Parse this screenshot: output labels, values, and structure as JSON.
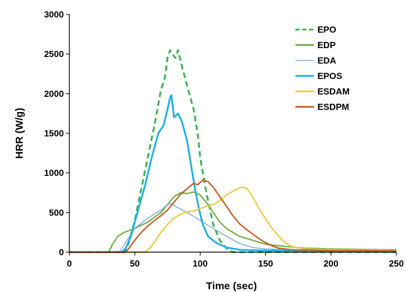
{
  "chart_data": {
    "type": "line",
    "title": "",
    "xlabel": "Time (sec)",
    "ylabel": "HRR (W/g)",
    "xlim": [
      0,
      250
    ],
    "ylim": [
      0,
      3000
    ],
    "xticks": [
      0,
      50,
      100,
      150,
      200,
      250
    ],
    "yticks": [
      0,
      500,
      1000,
      1500,
      2000,
      2500,
      3000
    ],
    "grid": false,
    "legend_position": "top-right",
    "series": [
      {
        "name": "EPO",
        "color": "#2db34a",
        "dash": "dashed",
        "points": [
          [
            0,
            0
          ],
          [
            42,
            0
          ],
          [
            45,
            100
          ],
          [
            50,
            400
          ],
          [
            55,
            800
          ],
          [
            60,
            1200
          ],
          [
            65,
            1600
          ],
          [
            70,
            2050
          ],
          [
            73,
            2200
          ],
          [
            75,
            2450
          ],
          [
            77,
            2550
          ],
          [
            79,
            2500
          ],
          [
            81,
            2450
          ],
          [
            83,
            2550
          ],
          [
            86,
            2350
          ],
          [
            90,
            2100
          ],
          [
            95,
            1800
          ],
          [
            98,
            1500
          ],
          [
            100,
            1200
          ],
          [
            103,
            900
          ],
          [
            106,
            650
          ],
          [
            110,
            350
          ],
          [
            115,
            150
          ],
          [
            120,
            50
          ],
          [
            125,
            0
          ],
          [
            250,
            0
          ]
        ]
      },
      {
        "name": "EDP",
        "color": "#70ad47",
        "dash": "solid",
        "points": [
          [
            0,
            0
          ],
          [
            30,
            0
          ],
          [
            33,
            100
          ],
          [
            37,
            200
          ],
          [
            42,
            250
          ],
          [
            50,
            300
          ],
          [
            60,
            380
          ],
          [
            70,
            500
          ],
          [
            80,
            700
          ],
          [
            85,
            750
          ],
          [
            90,
            740
          ],
          [
            95,
            760
          ],
          [
            100,
            720
          ],
          [
            105,
            620
          ],
          [
            110,
            500
          ],
          [
            115,
            380
          ],
          [
            120,
            300
          ],
          [
            130,
            200
          ],
          [
            140,
            150
          ],
          [
            150,
            100
          ],
          [
            160,
            80
          ],
          [
            180,
            50
          ],
          [
            200,
            40
          ],
          [
            240,
            30
          ],
          [
            250,
            30
          ]
        ]
      },
      {
        "name": "EDA",
        "color": "#8eaed6",
        "dash": "solid",
        "points": [
          [
            0,
            0
          ],
          [
            38,
            0
          ],
          [
            42,
            100
          ],
          [
            50,
            300
          ],
          [
            60,
            430
          ],
          [
            70,
            530
          ],
          [
            75,
            600
          ],
          [
            78,
            610
          ],
          [
            82,
            570
          ],
          [
            90,
            500
          ],
          [
            100,
            400
          ],
          [
            110,
            300
          ],
          [
            120,
            200
          ],
          [
            130,
            110
          ],
          [
            140,
            60
          ],
          [
            150,
            40
          ],
          [
            170,
            30
          ],
          [
            200,
            25
          ],
          [
            250,
            20
          ]
        ]
      },
      {
        "name": "EPOS",
        "color": "#1eaee8",
        "dash": "solid",
        "points": [
          [
            0,
            0
          ],
          [
            40,
            0
          ],
          [
            43,
            50
          ],
          [
            47,
            200
          ],
          [
            52,
            500
          ],
          [
            58,
            850
          ],
          [
            63,
            1200
          ],
          [
            68,
            1500
          ],
          [
            72,
            1600
          ],
          [
            75,
            1800
          ],
          [
            77,
            1950
          ],
          [
            78,
            1980
          ],
          [
            80,
            1700
          ],
          [
            83,
            1750
          ],
          [
            86,
            1650
          ],
          [
            90,
            1400
          ],
          [
            93,
            1100
          ],
          [
            96,
            800
          ],
          [
            99,
            550
          ],
          [
            102,
            350
          ],
          [
            106,
            200
          ],
          [
            112,
            120
          ],
          [
            120,
            60
          ],
          [
            130,
            30
          ],
          [
            150,
            20
          ],
          [
            200,
            15
          ],
          [
            250,
            15
          ]
        ]
      },
      {
        "name": "ESDAM",
        "color": "#f0c93c",
        "dash": "solid",
        "points": [
          [
            0,
            0
          ],
          [
            58,
            0
          ],
          [
            62,
            60
          ],
          [
            66,
            150
          ],
          [
            70,
            250
          ],
          [
            75,
            350
          ],
          [
            80,
            430
          ],
          [
            85,
            480
          ],
          [
            90,
            510
          ],
          [
            95,
            520
          ],
          [
            100,
            550
          ],
          [
            105,
            580
          ],
          [
            110,
            600
          ],
          [
            115,
            650
          ],
          [
            120,
            720
          ],
          [
            125,
            770
          ],
          [
            130,
            810
          ],
          [
            133,
            820
          ],
          [
            136,
            800
          ],
          [
            140,
            700
          ],
          [
            145,
            550
          ],
          [
            150,
            420
          ],
          [
            155,
            300
          ],
          [
            160,
            200
          ],
          [
            165,
            120
          ],
          [
            170,
            70
          ],
          [
            180,
            40
          ],
          [
            200,
            30
          ],
          [
            250,
            20
          ]
        ]
      },
      {
        "name": "ESDPM",
        "color": "#c55a23",
        "dash": "solid",
        "points": [
          [
            0,
            0
          ],
          [
            43,
            0
          ],
          [
            46,
            60
          ],
          [
            50,
            150
          ],
          [
            55,
            250
          ],
          [
            60,
            330
          ],
          [
            65,
            400
          ],
          [
            70,
            460
          ],
          [
            75,
            530
          ],
          [
            80,
            630
          ],
          [
            85,
            730
          ],
          [
            90,
            800
          ],
          [
            95,
            870
          ],
          [
            98,
            850
          ],
          [
            100,
            880
          ],
          [
            102,
            910
          ],
          [
            104,
            900
          ],
          [
            106,
            890
          ],
          [
            110,
            820
          ],
          [
            115,
            700
          ],
          [
            120,
            580
          ],
          [
            125,
            460
          ],
          [
            130,
            360
          ],
          [
            135,
            290
          ],
          [
            140,
            230
          ],
          [
            145,
            170
          ],
          [
            150,
            120
          ],
          [
            155,
            80
          ],
          [
            160,
            50
          ],
          [
            170,
            30
          ],
          [
            200,
            20
          ],
          [
            250,
            15
          ]
        ]
      }
    ]
  }
}
